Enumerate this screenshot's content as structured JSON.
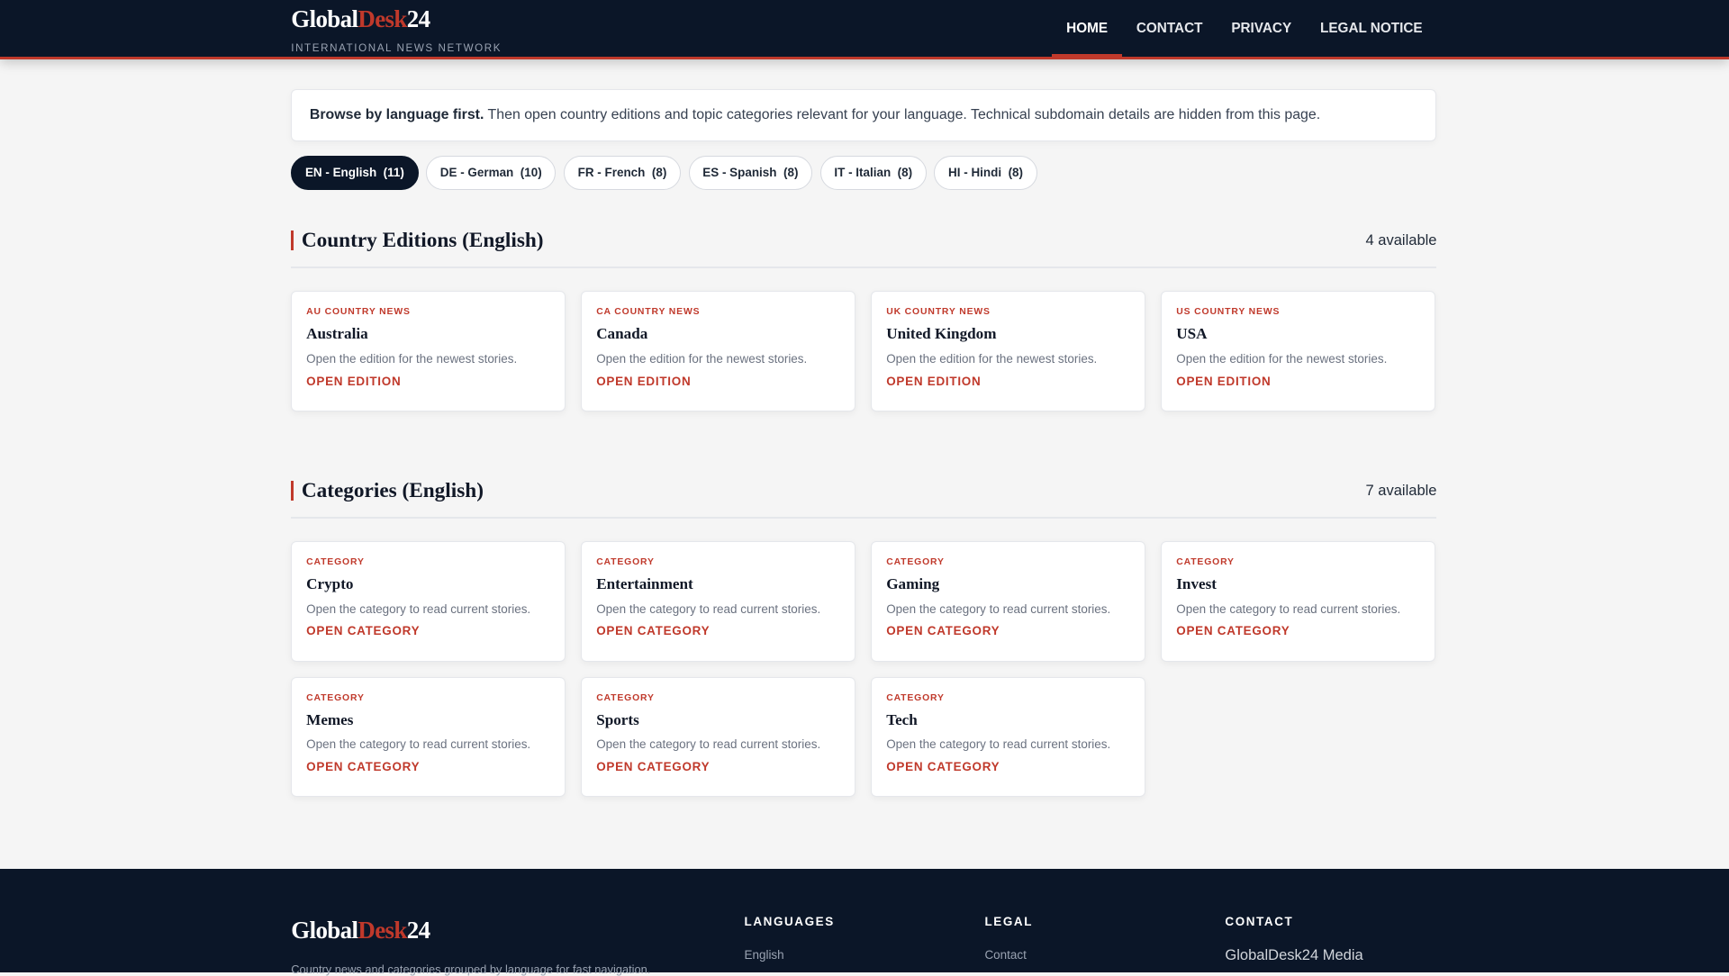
{
  "header": {
    "logo": {
      "a": "Global",
      "b": "Desk",
      "c": "24"
    },
    "tagline": "INTERNATIONAL NEWS NETWORK",
    "nav": [
      {
        "label": "HOME",
        "active": true
      },
      {
        "label": "CONTACT"
      },
      {
        "label": "PRIVACY"
      },
      {
        "label": "LEGAL NOTICE"
      }
    ]
  },
  "intro": {
    "bold": "Browse by language first.",
    "text": " Then open country editions and topic categories relevant for your language. Technical subdomain details are hidden from this page."
  },
  "languages": [
    {
      "label": "EN - English",
      "count": "(11)",
      "active": true
    },
    {
      "label": "DE - German",
      "count": "(10)"
    },
    {
      "label": "FR - French",
      "count": "(8)"
    },
    {
      "label": "ES - Spanish",
      "count": "(8)"
    },
    {
      "label": "IT - Italian",
      "count": "(8)"
    },
    {
      "label": "HI - Hindi",
      "count": "(8)"
    }
  ],
  "editions": {
    "title": "Country Editions (English)",
    "count": "4 available",
    "items": [
      {
        "kicker": "AU COUNTRY NEWS",
        "title": "Australia",
        "desc": "Open the edition for the newest stories.",
        "link": "OPEN EDITION"
      },
      {
        "kicker": "CA COUNTRY NEWS",
        "title": "Canada",
        "desc": "Open the edition for the newest stories.",
        "link": "OPEN EDITION"
      },
      {
        "kicker": "UK COUNTRY NEWS",
        "title": "United Kingdom",
        "desc": "Open the edition for the newest stories.",
        "link": "OPEN EDITION"
      },
      {
        "kicker": "US COUNTRY NEWS",
        "title": "USA",
        "desc": "Open the edition for the newest stories.",
        "link": "OPEN EDITION"
      }
    ]
  },
  "categories": {
    "title": "Categories (English)",
    "count": "7 available",
    "items": [
      {
        "kicker": "CATEGORY",
        "title": "Crypto",
        "desc": "Open the category to read current stories.",
        "link": "OPEN CATEGORY"
      },
      {
        "kicker": "CATEGORY",
        "title": "Entertainment",
        "desc": "Open the category to read current stories.",
        "link": "OPEN CATEGORY"
      },
      {
        "kicker": "CATEGORY",
        "title": "Gaming",
        "desc": "Open the category to read current stories.",
        "link": "OPEN CATEGORY"
      },
      {
        "kicker": "CATEGORY",
        "title": "Invest",
        "desc": "Open the category to read current stories.",
        "link": "OPEN CATEGORY"
      },
      {
        "kicker": "CATEGORY",
        "title": "Memes",
        "desc": "Open the category to read current stories.",
        "link": "OPEN CATEGORY"
      },
      {
        "kicker": "CATEGORY",
        "title": "Sports",
        "desc": "Open the category to read current stories.",
        "link": "OPEN CATEGORY"
      },
      {
        "kicker": "CATEGORY",
        "title": "Tech",
        "desc": "Open the category to read current stories.",
        "link": "OPEN CATEGORY"
      }
    ]
  },
  "footer": {
    "desc": "Country news and categories grouped by language for fast navigation.",
    "languages": {
      "heading": "LANGUAGES",
      "first": "English"
    },
    "legal": {
      "heading": "LEGAL",
      "first": "Contact"
    },
    "contact": {
      "heading": "CONTACT",
      "first": "GlobalDesk24 Media"
    }
  },
  "colors": {
    "accent": "#c0392b",
    "navy": "#0b1628",
    "background": "#f5f5f5"
  }
}
